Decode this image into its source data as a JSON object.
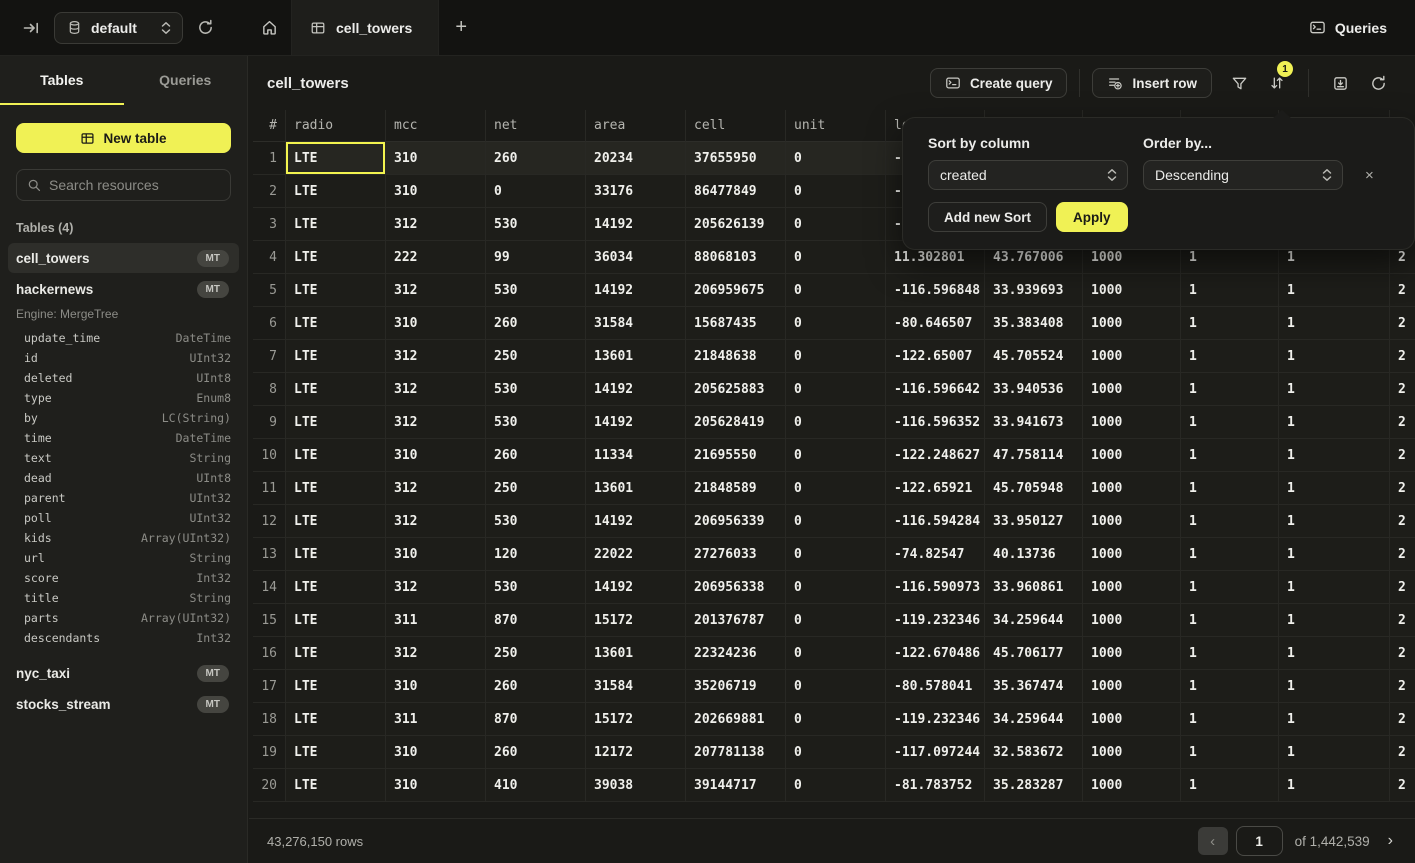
{
  "colors": {
    "accent": "#f0f155",
    "selected_row_bg": "#262621",
    "sidebar_bg": "#1f1f1c",
    "topbar_bg": "#131311"
  },
  "topbar": {
    "db_selector_value": "default",
    "queries_label": "Queries",
    "new_tab_icon": "+"
  },
  "tabs": {
    "active_label": "cell_towers"
  },
  "sidebar": {
    "tab_tables": "Tables",
    "tab_queries": "Queries",
    "new_table_label": "New table",
    "search_placeholder": "Search resources",
    "section_title": "Tables (4)",
    "tables": [
      {
        "name": "cell_towers",
        "badge": "MT",
        "selected": true
      },
      {
        "name": "hackernews",
        "badge": "MT",
        "engine": "Engine: MergeTree",
        "columns": [
          [
            "update_time",
            "DateTime"
          ],
          [
            "id",
            "UInt32"
          ],
          [
            "deleted",
            "UInt8"
          ],
          [
            "type",
            "Enum8"
          ],
          [
            "by",
            "LC(String)"
          ],
          [
            "time",
            "DateTime"
          ],
          [
            "text",
            "String"
          ],
          [
            "dead",
            "UInt8"
          ],
          [
            "parent",
            "UInt32"
          ],
          [
            "poll",
            "UInt32"
          ],
          [
            "kids",
            "Array(UInt32)"
          ],
          [
            "url",
            "String"
          ],
          [
            "score",
            "Int32"
          ],
          [
            "title",
            "String"
          ],
          [
            "parts",
            "Array(UInt32)"
          ],
          [
            "descendants",
            "Int32"
          ]
        ]
      },
      {
        "name": "nyc_taxi",
        "badge": "MT"
      },
      {
        "name": "stocks_stream",
        "badge": "MT"
      }
    ]
  },
  "main": {
    "title": "cell_towers",
    "toolbar": {
      "create_query_label": "Create query",
      "insert_row_label": "Insert row",
      "sort_badge": "1"
    },
    "table": {
      "headers": [
        "#",
        "radio",
        "mcc",
        "net",
        "area",
        "cell",
        "unit",
        "lon",
        "",
        "",
        "",
        "",
        ""
      ],
      "selection": {
        "row_index": 0,
        "cell_index": 0
      },
      "rows": [
        {
          "n": "1",
          "cells": [
            "LTE",
            "310",
            "260",
            "20234",
            "37655950",
            "0",
            "-7",
            "",
            "",
            "",
            "",
            ""
          ]
        },
        {
          "n": "2",
          "cells": [
            "LTE",
            "310",
            "0",
            "33176",
            "86477849",
            "0",
            "-8",
            "",
            "",
            "",
            "",
            ""
          ]
        },
        {
          "n": "3",
          "cells": [
            "LTE",
            "312",
            "530",
            "14192",
            "205626139",
            "0",
            "-1",
            "",
            "",
            "",
            "",
            ""
          ]
        },
        {
          "n": "4",
          "cells": [
            "LTE",
            "222",
            "99",
            "36034",
            "88068103",
            "0",
            "11.302801",
            "43.767006",
            "1000",
            "1",
            "1",
            "2"
          ]
        },
        {
          "n": "5",
          "cells": [
            "LTE",
            "312",
            "530",
            "14192",
            "206959675",
            "0",
            "-116.596848",
            "33.939693",
            "1000",
            "1",
            "1",
            "2"
          ]
        },
        {
          "n": "6",
          "cells": [
            "LTE",
            "310",
            "260",
            "31584",
            "15687435",
            "0",
            "-80.646507",
            "35.383408",
            "1000",
            "1",
            "1",
            "2"
          ]
        },
        {
          "n": "7",
          "cells": [
            "LTE",
            "312",
            "250",
            "13601",
            "21848638",
            "0",
            "-122.65007",
            "45.705524",
            "1000",
            "1",
            "1",
            "2"
          ]
        },
        {
          "n": "8",
          "cells": [
            "LTE",
            "312",
            "530",
            "14192",
            "205625883",
            "0",
            "-116.596642",
            "33.940536",
            "1000",
            "1",
            "1",
            "2"
          ]
        },
        {
          "n": "9",
          "cells": [
            "LTE",
            "312",
            "530",
            "14192",
            "205628419",
            "0",
            "-116.596352",
            "33.941673",
            "1000",
            "1",
            "1",
            "2"
          ]
        },
        {
          "n": "10",
          "cells": [
            "LTE",
            "310",
            "260",
            "11334",
            "21695550",
            "0",
            "-122.248627",
            "47.758114",
            "1000",
            "1",
            "1",
            "2"
          ]
        },
        {
          "n": "11",
          "cells": [
            "LTE",
            "312",
            "250",
            "13601",
            "21848589",
            "0",
            "-122.65921",
            "45.705948",
            "1000",
            "1",
            "1",
            "2"
          ]
        },
        {
          "n": "12",
          "cells": [
            "LTE",
            "312",
            "530",
            "14192",
            "206956339",
            "0",
            "-116.594284",
            "33.950127",
            "1000",
            "1",
            "1",
            "2"
          ]
        },
        {
          "n": "13",
          "cells": [
            "LTE",
            "310",
            "120",
            "22022",
            "27276033",
            "0",
            "-74.82547",
            "40.13736",
            "1000",
            "1",
            "1",
            "2"
          ]
        },
        {
          "n": "14",
          "cells": [
            "LTE",
            "312",
            "530",
            "14192",
            "206956338",
            "0",
            "-116.590973",
            "33.960861",
            "1000",
            "1",
            "1",
            "2"
          ]
        },
        {
          "n": "15",
          "cells": [
            "LTE",
            "311",
            "870",
            "15172",
            "201376787",
            "0",
            "-119.232346",
            "34.259644",
            "1000",
            "1",
            "1",
            "2"
          ]
        },
        {
          "n": "16",
          "cells": [
            "LTE",
            "312",
            "250",
            "13601",
            "22324236",
            "0",
            "-122.670486",
            "45.706177",
            "1000",
            "1",
            "1",
            "2"
          ]
        },
        {
          "n": "17",
          "cells": [
            "LTE",
            "310",
            "260",
            "31584",
            "35206719",
            "0",
            "-80.578041",
            "35.367474",
            "1000",
            "1",
            "1",
            "2"
          ]
        },
        {
          "n": "18",
          "cells": [
            "LTE",
            "311",
            "870",
            "15172",
            "202669881",
            "0",
            "-119.232346",
            "34.259644",
            "1000",
            "1",
            "1",
            "2"
          ]
        },
        {
          "n": "19",
          "cells": [
            "LTE",
            "310",
            "260",
            "12172",
            "207781138",
            "0",
            "-117.097244",
            "32.583672",
            "1000",
            "1",
            "1",
            "2"
          ]
        },
        {
          "n": "20",
          "cells": [
            "LTE",
            "310",
            "410",
            "39038",
            "39144717",
            "0",
            "-81.783752",
            "35.283287",
            "1000",
            "1",
            "1",
            "2"
          ]
        }
      ]
    },
    "footer": {
      "rows_label": "43,276,150 rows",
      "page_value": "1",
      "of_label": "of 1,442,539",
      "prev_icon": "‹",
      "next_icon": "›"
    }
  },
  "sort_popup": {
    "column_label": "Sort by column",
    "order_label": "Order by...",
    "column_value": "created",
    "order_value": "Descending",
    "add_sort_label": "Add new Sort",
    "apply_label": "Apply",
    "close_icon": "×"
  }
}
